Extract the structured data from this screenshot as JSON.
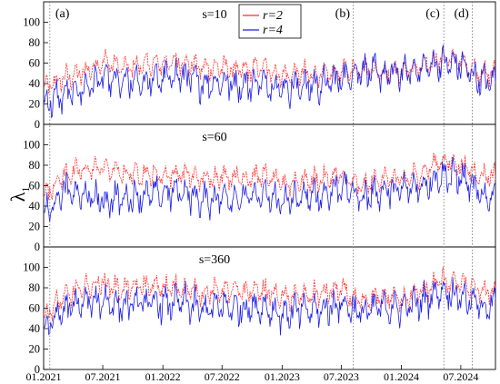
{
  "colors": {
    "r2": "#ff2a2a",
    "r4": "#1f1fe6",
    "marker": "#707070"
  },
  "ylabel_main": "λ",
  "ylabel_sub": "1",
  "xticks": [
    "01.2021",
    "07.2021",
    "01.2022",
    "07.2022",
    "01.2023",
    "07.2023",
    "01.2024",
    "07.2024"
  ],
  "events": [
    {
      "label": "(a)",
      "date": "2021-01-20"
    },
    {
      "label": "(b)",
      "date": "2023-08-07"
    },
    {
      "label": "(c)",
      "date": "2024-05-10"
    },
    {
      "label": "(d)",
      "date": "2024-08-05"
    }
  ],
  "chart_data": [
    {
      "type": "line",
      "title": "s=10",
      "x_range": [
        "2021-01-01",
        "2024-10-15"
      ],
      "ylim": [
        0,
        120
      ],
      "yticks": [
        "0",
        "20",
        "40",
        "60",
        "80",
        "100"
      ],
      "legend": {
        "placement": "top-center",
        "entries": [
          "r=2",
          "r=4"
        ]
      },
      "series": [
        {
          "name": "r=2",
          "color": "#ff2a2a",
          "x": [
            "2021-01",
            "2021-03",
            "2021-05",
            "2021-07",
            "2021-09",
            "2021-11",
            "2022-01",
            "2022-03",
            "2022-05",
            "2022-07",
            "2022-09",
            "2022-11",
            "2023-01",
            "2023-03",
            "2023-05",
            "2023-07",
            "2023-09",
            "2023-11",
            "2024-01",
            "2024-03",
            "2024-05",
            "2024-07",
            "2024-09"
          ],
          "y": [
            35,
            45,
            50,
            62,
            55,
            58,
            60,
            62,
            55,
            56,
            52,
            56,
            48,
            50,
            48,
            52,
            55,
            52,
            52,
            55,
            65,
            62,
            50
          ]
        },
        {
          "name": "r=4",
          "color": "#1f1fe6",
          "x": [
            "2021-01",
            "2021-03",
            "2021-05",
            "2021-07",
            "2021-09",
            "2021-11",
            "2022-01",
            "2022-03",
            "2022-05",
            "2022-07",
            "2022-09",
            "2022-11",
            "2023-01",
            "2023-03",
            "2023-05",
            "2023-07",
            "2023-09",
            "2023-11",
            "2024-01",
            "2024-03",
            "2024-05",
            "2024-07",
            "2024-09"
          ],
          "y": [
            20,
            28,
            35,
            45,
            40,
            42,
            45,
            48,
            40,
            42,
            38,
            42,
            36,
            38,
            38,
            45,
            55,
            48,
            50,
            55,
            60,
            58,
            42
          ]
        }
      ]
    },
    {
      "type": "line",
      "title": "s=60",
      "x_range": [
        "2021-01-01",
        "2024-10-15"
      ],
      "ylim": [
        0,
        120
      ],
      "yticks": [
        "0",
        "20",
        "40",
        "60",
        "80",
        "100"
      ],
      "series": [
        {
          "name": "r=2",
          "color": "#ff2a2a",
          "x": [
            "2021-01",
            "2021-03",
            "2021-05",
            "2021-07",
            "2021-09",
            "2021-11",
            "2022-01",
            "2022-03",
            "2022-05",
            "2022-07",
            "2022-09",
            "2022-11",
            "2023-01",
            "2023-03",
            "2023-05",
            "2023-07",
            "2023-09",
            "2023-11",
            "2024-01",
            "2024-03",
            "2024-05",
            "2024-07",
            "2024-09"
          ],
          "y": [
            50,
            70,
            75,
            78,
            72,
            72,
            70,
            72,
            66,
            70,
            68,
            70,
            62,
            65,
            66,
            70,
            58,
            68,
            65,
            72,
            85,
            80,
            70
          ]
        },
        {
          "name": "r=4",
          "color": "#1f1fe6",
          "x": [
            "2021-01",
            "2021-03",
            "2021-05",
            "2021-07",
            "2021-09",
            "2021-11",
            "2022-01",
            "2022-03",
            "2022-05",
            "2022-07",
            "2022-09",
            "2022-11",
            "2023-01",
            "2023-03",
            "2023-05",
            "2023-07",
            "2023-09",
            "2023-11",
            "2024-01",
            "2024-03",
            "2024-05",
            "2024-07",
            "2024-09"
          ],
          "y": [
            30,
            55,
            50,
            45,
            48,
            50,
            52,
            55,
            45,
            50,
            48,
            50,
            44,
            48,
            50,
            60,
            48,
            55,
            55,
            60,
            70,
            68,
            50
          ]
        }
      ]
    },
    {
      "type": "line",
      "title": "s=360",
      "x_range": [
        "2021-01-01",
        "2024-10-15"
      ],
      "ylim": [
        0,
        120
      ],
      "yticks": [
        "0",
        "20",
        "40",
        "60",
        "80",
        "100"
      ],
      "series": [
        {
          "name": "r=2",
          "color": "#ff2a2a",
          "x": [
            "2021-01",
            "2021-03",
            "2021-05",
            "2021-07",
            "2021-09",
            "2021-11",
            "2022-01",
            "2022-03",
            "2022-05",
            "2022-07",
            "2022-09",
            "2022-11",
            "2023-01",
            "2023-03",
            "2023-05",
            "2023-07",
            "2023-09",
            "2023-11",
            "2024-01",
            "2024-03",
            "2024-05",
            "2024-07",
            "2024-09"
          ],
          "y": [
            52,
            70,
            80,
            85,
            78,
            82,
            80,
            80,
            75,
            78,
            76,
            78,
            70,
            72,
            74,
            78,
            64,
            72,
            70,
            75,
            88,
            84,
            76
          ]
        },
        {
          "name": "r=4",
          "color": "#1f1fe6",
          "x": [
            "2021-01",
            "2021-03",
            "2021-05",
            "2021-07",
            "2021-09",
            "2021-11",
            "2022-01",
            "2022-03",
            "2022-05",
            "2022-07",
            "2022-09",
            "2022-11",
            "2023-01",
            "2023-03",
            "2023-05",
            "2023-07",
            "2023-09",
            "2023-11",
            "2024-01",
            "2024-03",
            "2024-05",
            "2024-07",
            "2024-09"
          ],
          "y": [
            38,
            58,
            65,
            68,
            62,
            66,
            64,
            66,
            58,
            62,
            60,
            62,
            54,
            58,
            58,
            65,
            55,
            62,
            60,
            66,
            78,
            72,
            62
          ]
        }
      ]
    }
  ]
}
